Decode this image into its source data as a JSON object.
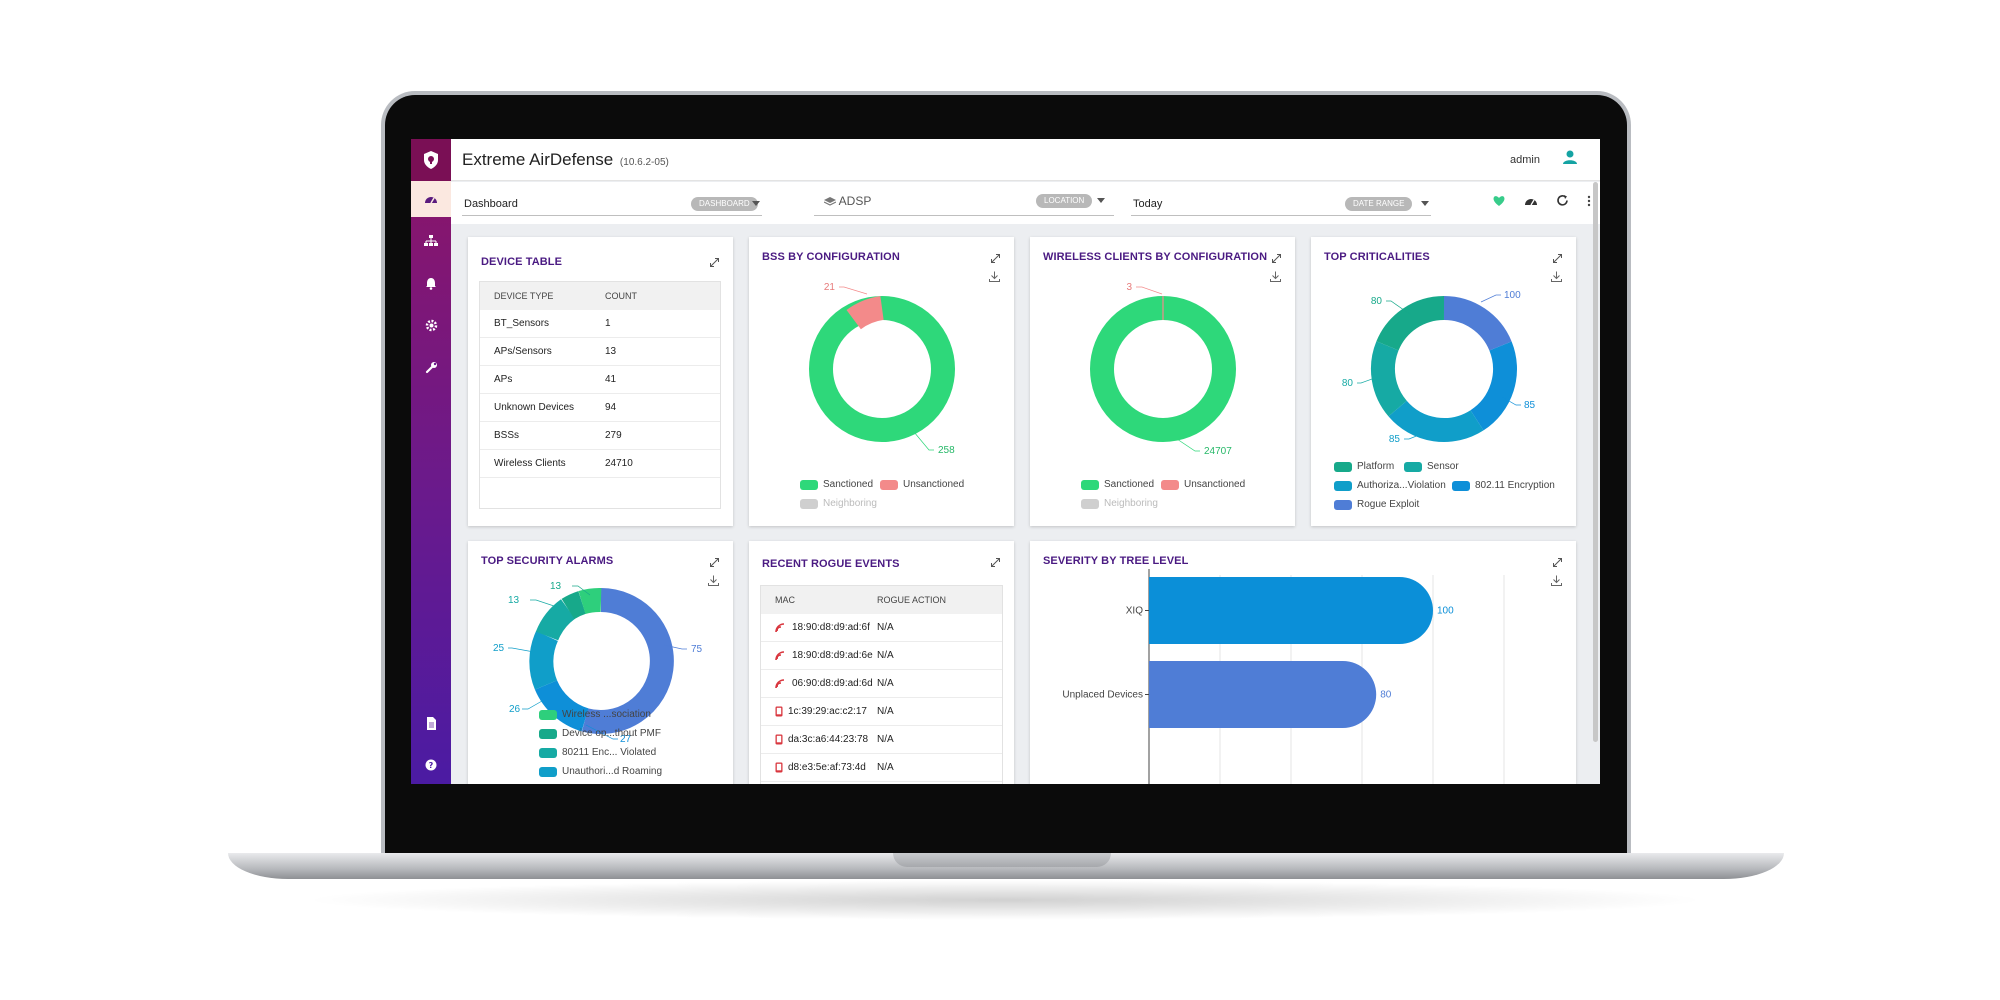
{
  "app": {
    "title": "Extreme AirDefense",
    "version": "(10.6.2-05)",
    "user": "admin"
  },
  "filters": {
    "dashboard": {
      "value": "Dashboard",
      "chip": "DASHBOARD"
    },
    "location": {
      "value": "ADSP",
      "chip": "LOCATION"
    },
    "date": {
      "value": "Today",
      "chip": "DATE RANGE"
    }
  },
  "device_table": {
    "title": "DEVICE TABLE",
    "headers": [
      "DEVICE TYPE",
      "COUNT"
    ],
    "rows": [
      {
        "type": "BT_Sensors",
        "count": "1"
      },
      {
        "type": "APs/Sensors",
        "count": "13"
      },
      {
        "type": "APs",
        "count": "41"
      },
      {
        "type": "Unknown Devices",
        "count": "94"
      },
      {
        "type": "BSSs",
        "count": "279"
      },
      {
        "type": "Wireless Clients",
        "count": "24710"
      }
    ]
  },
  "bss_config": {
    "title": "BSS BY CONFIGURATION",
    "legend": [
      "Sanctioned",
      "Unsanctioned",
      "Neighboring"
    ],
    "labels": [
      "21",
      "258"
    ]
  },
  "clients_config": {
    "title": "WIRELESS CLIENTS BY CONFIGURATION",
    "legend": [
      "Sanctioned",
      "Unsanctioned",
      "Neighboring"
    ],
    "labels": [
      "3",
      "24707"
    ]
  },
  "top_criticalities": {
    "title": "TOP CRITICALITIES",
    "legend": [
      "Platform",
      "Sensor",
      "Authoriza...Violation",
      "802.11 Encryption",
      "Rogue Exploit"
    ],
    "labels": [
      "100",
      "85",
      "85",
      "80",
      "80"
    ]
  },
  "top_alarms": {
    "title": "TOP SECURITY ALARMS",
    "legend": [
      "Wireless ...sociation",
      "Device op...thout PMF",
      "80211 Enc... Violated",
      "Unauthori...d Roaming"
    ],
    "labels": [
      "13",
      "13",
      "25",
      "75",
      "26",
      "27"
    ]
  },
  "rogue_events": {
    "title": "RECENT ROGUE EVENTS",
    "headers": [
      "MAC",
      "ROGUE ACTION"
    ],
    "rows": [
      {
        "mac": "18:90:d8:d9:ad:6f",
        "action": "N/A",
        "icon": "wifi-signal-icon"
      },
      {
        "mac": "18:90:d8:d9:ad:6e",
        "action": "N/A",
        "icon": "wifi-signal-icon"
      },
      {
        "mac": "06:90:d8:d9:ad:6d",
        "action": "N/A",
        "icon": "wifi-signal-icon"
      },
      {
        "mac": "1c:39:29:ac:c2:17",
        "action": "N/A",
        "icon": "mobile-device-icon"
      },
      {
        "mac": "da:3c:a6:44:23:78",
        "action": "N/A",
        "icon": "mobile-device-icon"
      },
      {
        "mac": "d8:e3:5e:af:73:4d",
        "action": "N/A",
        "icon": "mobile-device-icon"
      }
    ]
  },
  "severity": {
    "title": "SEVERITY BY TREE LEVEL",
    "chart_data": {
      "type": "bar",
      "orientation": "horizontal",
      "categories": [
        "XIQ",
        "Unplaced Devices"
      ],
      "values": [
        100,
        80
      ],
      "colors": [
        "#0b8fd8",
        "#4f7dd6"
      ]
    }
  },
  "colors": {
    "sanctioned": "#2ed87a",
    "unsanctioned": "#f38a8a",
    "neighboring": "#cfcfcf",
    "platform": "#17a98a",
    "sensor": "#16aaa4",
    "authorization": "#109ec9",
    "encryption": "#0e8fd8",
    "rogue": "#4f7dd6",
    "title": "#4a1a82"
  }
}
